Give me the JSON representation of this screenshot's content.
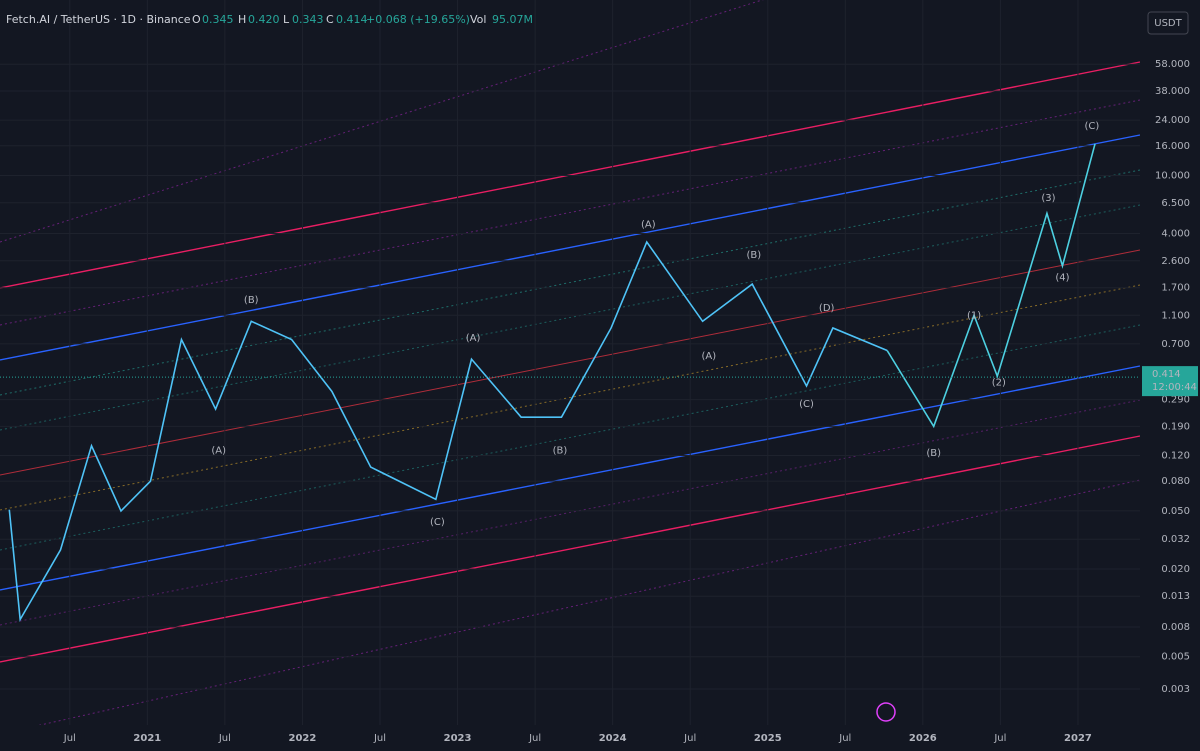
{
  "header": {
    "symbol": "Fetch.AI / TetherUS · 1D · Binance",
    "o_label": "O",
    "o": "0.345",
    "h_label": "H",
    "h": "0.420",
    "l_label": "L",
    "l": "0.343",
    "c_label": "C",
    "c": "0.414",
    "change": "+0.068 (+19.65%)",
    "vol_label": "Vol",
    "vol": "95.07M",
    "currency": "USDT"
  },
  "chart_data": {
    "type": "line",
    "log_scale": true,
    "xlim": [
      2020.05,
      2027.4
    ],
    "ylim": [
      0.0017,
      160
    ],
    "xticks": [
      {
        "value": 2020.5,
        "label": "Jul"
      },
      2021,
      {
        "value": 2021.5,
        "label": "Jul"
      },
      2022,
      {
        "value": 2022.5,
        "label": "Jul"
      },
      2023,
      {
        "value": 2023.5,
        "label": "Jul"
      },
      2024,
      {
        "value": 2024.5,
        "label": "Jul"
      },
      2025,
      {
        "value": 2025.5,
        "label": "Jul"
      },
      2026,
      {
        "value": 2026.5,
        "label": "Jul"
      },
      2027
    ],
    "yticks": [
      {
        "value": 58,
        "label": "58.000"
      },
      {
        "value": 38,
        "label": "38.000"
      },
      {
        "value": 24,
        "label": "24.000"
      },
      {
        "value": 16,
        "label": "16.000"
      },
      {
        "value": 10,
        "label": "10.000"
      },
      {
        "value": 6.5,
        "label": "6.500"
      },
      {
        "value": 4,
        "label": "4.000"
      },
      {
        "value": 2.6,
        "label": "2.600"
      },
      {
        "value": 1.7,
        "label": "1.700"
      },
      {
        "value": 1.1,
        "label": "1.100"
      },
      {
        "value": 0.7,
        "label": "0.700"
      },
      {
        "value": 0.29,
        "label": "0.290"
      },
      {
        "value": 0.19,
        "label": "0.190"
      },
      {
        "value": 0.12,
        "label": "0.120"
      },
      {
        "value": 0.08,
        "label": "0.080"
      },
      {
        "value": 0.05,
        "label": "0.050"
      },
      0.032,
      {
        "value": 0.02,
        "label": "0.020"
      },
      0.013,
      {
        "value": 0.008,
        "label": "0.008"
      },
      {
        "value": 0.005,
        "label": "0.005"
      },
      {
        "value": 0.003,
        "label": "0.003"
      }
    ],
    "series": [
      {
        "color": "#4fc3f7",
        "x": [
          2020.11,
          2020.18,
          2020.44,
          2020.64,
          2020.83,
          2021.02,
          2021.22,
          2021.44,
          2021.67,
          2021.93,
          2022.19,
          2022.44,
          2022.86,
          2023.09,
          2023.41,
          2023.67,
          2023.99,
          2024.22,
          2024.58,
          2024.9,
          2025.25,
          2025.42,
          2025.77
        ],
        "values": [
          0.051,
          0.009,
          0.027,
          0.14,
          0.05,
          0.08,
          0.75,
          0.25,
          1.0,
          0.75,
          0.33,
          0.1,
          0.06,
          0.55,
          0.22,
          0.22,
          0.9,
          3.5,
          1.0,
          1.8,
          0.36,
          0.9,
          0.63
        ]
      },
      {
        "color": "#4dd0e1",
        "x": [
          2025.77,
          2026.07,
          2026.33,
          2026.48,
          2026.8,
          2026.9,
          2027.11
        ],
        "values": [
          0.63,
          0.19,
          1.1,
          0.42,
          5.5,
          2.4,
          16.5
        ]
      }
    ],
    "last_price": {
      "value": 0.414,
      "label": "0.414",
      "countdown": "12:00:44"
    },
    "annotations": [
      {
        "text": "(B)",
        "x": 2021.67,
        "y": 1.4,
        "color": "#f23645"
      },
      {
        "text": "(A)",
        "x": 2021.46,
        "y": 0.13,
        "color": "#f23645"
      },
      {
        "text": "(C)",
        "x": 2022.87,
        "y": 0.042,
        "color": "#f23645"
      },
      {
        "text": "(A)",
        "x": 2023.1,
        "y": 0.77,
        "color": "#4dd0e1"
      },
      {
        "text": "(B)",
        "x": 2023.66,
        "y": 0.13,
        "color": "#4dd0e1"
      },
      {
        "text": "(A)",
        "x": 2024.23,
        "y": 4.6,
        "color": "#8bc34a"
      },
      {
        "text": "(A)",
        "x": 2024.62,
        "y": 0.58,
        "color": "#f23645"
      },
      {
        "text": "(B)",
        "x": 2024.91,
        "y": 2.85,
        "color": "#f23645"
      },
      {
        "text": "(C)",
        "x": 2025.25,
        "y": 0.27,
        "color": "#f23645"
      },
      {
        "text": "(D)",
        "x": 2025.38,
        "y": 1.23,
        "color": "#f23645"
      },
      {
        "text": "(B)",
        "x": 2026.07,
        "y": 0.125,
        "color": "#8bc34a"
      },
      {
        "text": "(1)",
        "x": 2026.33,
        "y": 1.1,
        "color": "#4dd0e1"
      },
      {
        "text": "(2)",
        "x": 2026.49,
        "y": 0.38,
        "color": "#4dd0e1"
      },
      {
        "text": "(3)",
        "x": 2026.81,
        "y": 7.0,
        "color": "#4dd0e1"
      },
      {
        "text": "(4)",
        "x": 2026.9,
        "y": 2.0,
        "color": "#4dd0e1"
      },
      {
        "text": "(C)",
        "x": 2027.09,
        "y": 21.8,
        "color": "#8bc34a"
      }
    ]
  }
}
